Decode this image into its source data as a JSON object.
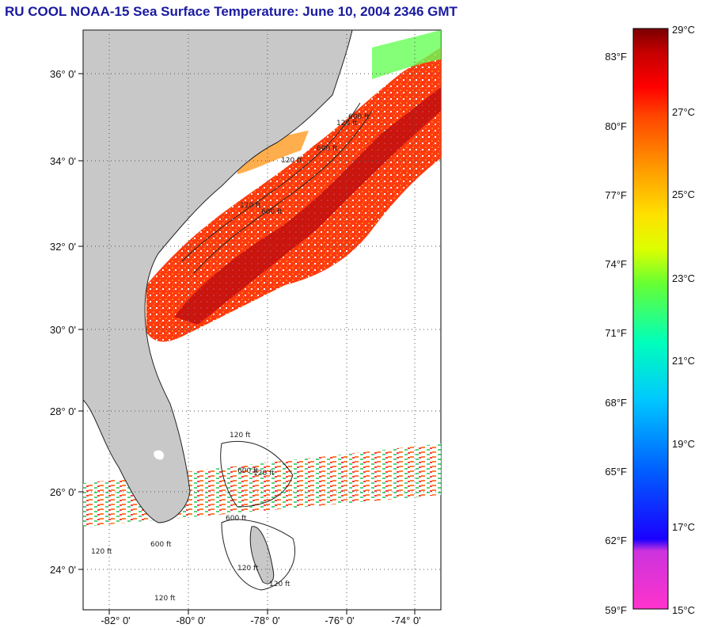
{
  "title": "RU COOL  NOAA-15  Sea Surface Temperature:  June 10, 2004 2346 GMT",
  "map": {
    "lat_labels": [
      {
        "value": 36,
        "text": "36° 0'"
      },
      {
        "value": 34,
        "text": "34° 0'"
      },
      {
        "value": 32,
        "text": "32° 0'"
      },
      {
        "value": 30,
        "text": "30° 0'"
      },
      {
        "value": 28,
        "text": "28° 0'"
      },
      {
        "value": 26,
        "text": "26° 0'"
      },
      {
        "value": 24,
        "text": "24° 0'"
      }
    ],
    "lon_labels": [
      {
        "value": -82,
        "text": "-82° 0'"
      },
      {
        "value": -80,
        "text": "-80° 0'"
      },
      {
        "value": -78,
        "text": "-78° 0'"
      },
      {
        "value": -76,
        "text": "-76° 0'"
      },
      {
        "value": -74,
        "text": "-74° 0'"
      }
    ],
    "lat_range": [
      23.0,
      37.0
    ],
    "lon_range": [
      -83.0,
      -73.0
    ],
    "grid": "dotted",
    "land_color": "#c8c8c8",
    "contour_labels": [
      "120 ft",
      "600 ft",
      "120 ft",
      "600 ft",
      "120 ft",
      "600 ft",
      "120 ft",
      "600 ft",
      "120 ft",
      "600 ft",
      "120 ft",
      "120 ft",
      "600 ft",
      "120 ft",
      "120 ft"
    ]
  },
  "colorbar": {
    "celsius_labels": [
      "29°C",
      "27°C",
      "25°C",
      "23°C",
      "21°C",
      "19°C",
      "17°C",
      "15°C"
    ],
    "fahrenheit_labels": [
      "83°F",
      "80°F",
      "77°F",
      "74°F",
      "71°F",
      "68°F",
      "65°F",
      "62°F",
      "59°F"
    ],
    "colors": [
      "#ff33cc",
      "#7a22d8",
      "#0000ff",
      "#0080ff",
      "#00ccff",
      "#00ffcc",
      "#33ff66",
      "#ccff00",
      "#ffee00",
      "#ff9900",
      "#ff4400",
      "#ff0000",
      "#cc0000",
      "#880000"
    ]
  }
}
